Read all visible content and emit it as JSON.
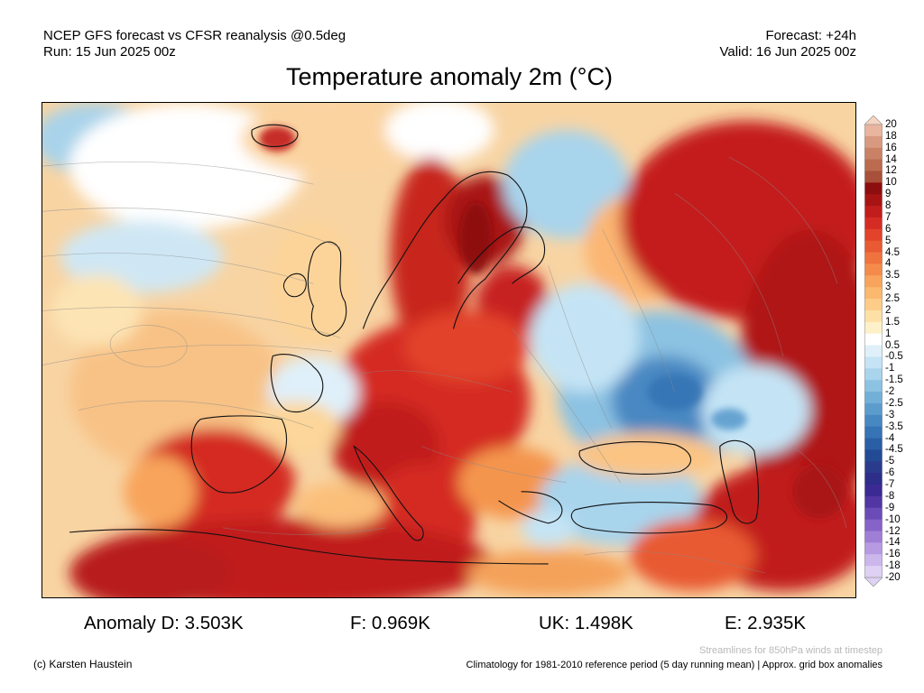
{
  "header": {
    "left_line1": "NCEP GFS forecast vs CFSR reanalysis @0.5deg",
    "left_line2": "Run: 15 Jun 2025 00z",
    "right_line1": "Forecast: +24h",
    "right_line2": "Valid: 16 Jun 2025 00z"
  },
  "title": "Temperature anomaly 2m (°C)",
  "colorbar": {
    "labels": [
      "20",
      "18",
      "16",
      "14",
      "12",
      "10",
      "9",
      "8",
      "7",
      "6",
      "5",
      "4.5",
      "4",
      "3.5",
      "3",
      "2.5",
      "2",
      "1.5",
      "1",
      "0.5",
      "-0.5",
      "-1",
      "-1.5",
      "-2",
      "-2.5",
      "-3",
      "-3.5",
      "-4",
      "-4.5",
      "-5",
      "-6",
      "-7",
      "-8",
      "-9",
      "-10",
      "-12",
      "-14",
      "-16",
      "-18",
      "-20"
    ],
    "colors": [
      "#f6d4c2",
      "#e8b59e",
      "#d79a80",
      "#c98266",
      "#ba6b50",
      "#a8503a",
      "#8c0e0e",
      "#a81414",
      "#c11d1d",
      "#d42c24",
      "#e2432b",
      "#e85a33",
      "#ef733e",
      "#f48b4a",
      "#f8a45c",
      "#fab96f",
      "#fccc88",
      "#fde0a6",
      "#fef0c8",
      "#ffffff",
      "#dff0fa",
      "#c4e4f5",
      "#a8d4ec",
      "#8cc2e2",
      "#73b0d8",
      "#5c9ccd",
      "#4888c2",
      "#3674b5",
      "#2a5fa6",
      "#234b95",
      "#2a3b8c",
      "#2d2d8a",
      "#3b2a93",
      "#5236a3",
      "#6b4bb7",
      "#8663c8",
      "#9f7ed6",
      "#b69ae2",
      "#ccb7ec",
      "#dfd1f4"
    ]
  },
  "stats": {
    "d": "Anomaly D: 3.503K",
    "f": "F: 0.969K",
    "uk": "UK: 1.498K",
    "e": "E: 2.935K"
  },
  "footer": {
    "streamlines_note": "Streamlines for 850hPa winds at timestep",
    "copyright": "(c) Karsten Haustein",
    "climatology_note": "Climatology for 1981-2010 reference period (5 day running mean) | Approx. grid box anomalies"
  }
}
